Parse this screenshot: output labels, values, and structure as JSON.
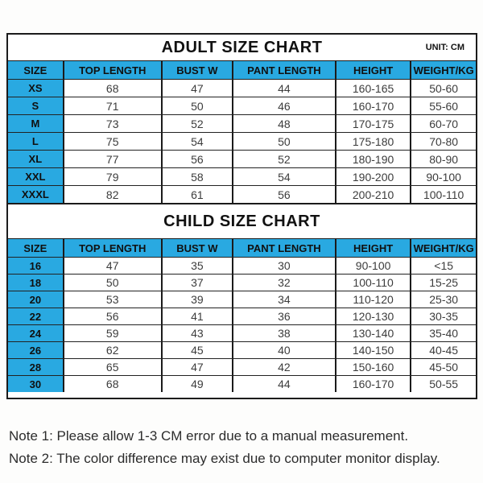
{
  "adult_chart": {
    "title": "ADULT SIZE CHART",
    "unit_label": "UNIT: CM",
    "columns": [
      "SIZE",
      "TOP LENGTH",
      "BUST W",
      "PANT LENGTH",
      "HEIGHT",
      "WEIGHT/KG"
    ],
    "rows": [
      [
        "XS",
        "68",
        "47",
        "44",
        "160-165",
        "50-60"
      ],
      [
        "S",
        "71",
        "50",
        "46",
        "160-170",
        "55-60"
      ],
      [
        "M",
        "73",
        "52",
        "48",
        "170-175",
        "60-70"
      ],
      [
        "L",
        "75",
        "54",
        "50",
        "175-180",
        "70-80"
      ],
      [
        "XL",
        "77",
        "56",
        "52",
        "180-190",
        "80-90"
      ],
      [
        "XXL",
        "79",
        "58",
        "54",
        "190-200",
        "90-100"
      ],
      [
        "XXXL",
        "82",
        "61",
        "56",
        "200-210",
        "100-110"
      ]
    ]
  },
  "child_chart": {
    "title": "CHILD SIZE CHART",
    "columns": [
      "SIZE",
      "TOP LENGTH",
      "BUST W",
      "PANT LENGTH",
      "HEIGHT",
      "WEIGHT/KG"
    ],
    "rows": [
      [
        "16",
        "47",
        "35",
        "30",
        "90-100",
        "<15"
      ],
      [
        "18",
        "50",
        "37",
        "32",
        "100-110",
        "15-25"
      ],
      [
        "20",
        "53",
        "39",
        "34",
        "110-120",
        "25-30"
      ],
      [
        "22",
        "56",
        "41",
        "36",
        "120-130",
        "30-35"
      ],
      [
        "24",
        "59",
        "43",
        "38",
        "130-140",
        "35-40"
      ],
      [
        "26",
        "62",
        "45",
        "40",
        "140-150",
        "40-45"
      ],
      [
        "28",
        "65",
        "47",
        "42",
        "150-160",
        "45-50"
      ],
      [
        "30",
        "68",
        "49",
        "44",
        "160-170",
        "50-55"
      ]
    ]
  },
  "notes": [
    "Note 1: Please allow 1-3 CM error due to a manual measurement.",
    "Note 2: The color difference may exist due to computer monitor display."
  ],
  "colors": {
    "header_blue": "#29a9e1",
    "border": "#1b1b1b",
    "background": "#ffffff"
  }
}
